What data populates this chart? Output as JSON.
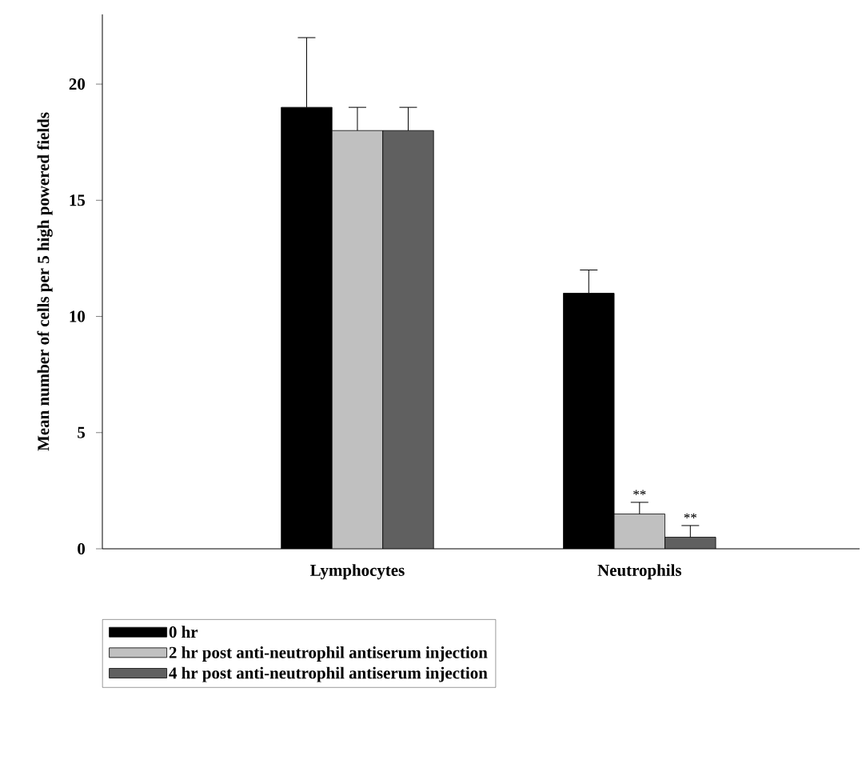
{
  "chart_data": {
    "type": "bar",
    "ylabel": "Mean number of cells per 5 high powered fields",
    "categories": [
      "Lymphocytes",
      "Neutrophils"
    ],
    "series": [
      {
        "name": "0 hr",
        "color": "#000000",
        "values": [
          19,
          11
        ],
        "errors": [
          [
            19,
            22
          ],
          [
            11,
            12
          ]
        ]
      },
      {
        "name": "2 hr post anti-neutrophil antiserum injection",
        "color": "#c0c0c0",
        "values": [
          18,
          1.5
        ],
        "errors": [
          [
            18,
            19
          ],
          [
            1.5,
            2
          ]
        ]
      },
      {
        "name": "4 hr post anti-neutrophil antiserum injection",
        "color": "#606060",
        "values": [
          18,
          0.5
        ],
        "errors": [
          [
            18,
            19
          ],
          [
            0.5,
            1
          ]
        ]
      }
    ],
    "ylim": [
      0,
      23
    ],
    "yticks": [
      0,
      5,
      10,
      15,
      20
    ],
    "legend": "bottom",
    "grid": false,
    "annotations": [
      "**",
      "**"
    ]
  }
}
